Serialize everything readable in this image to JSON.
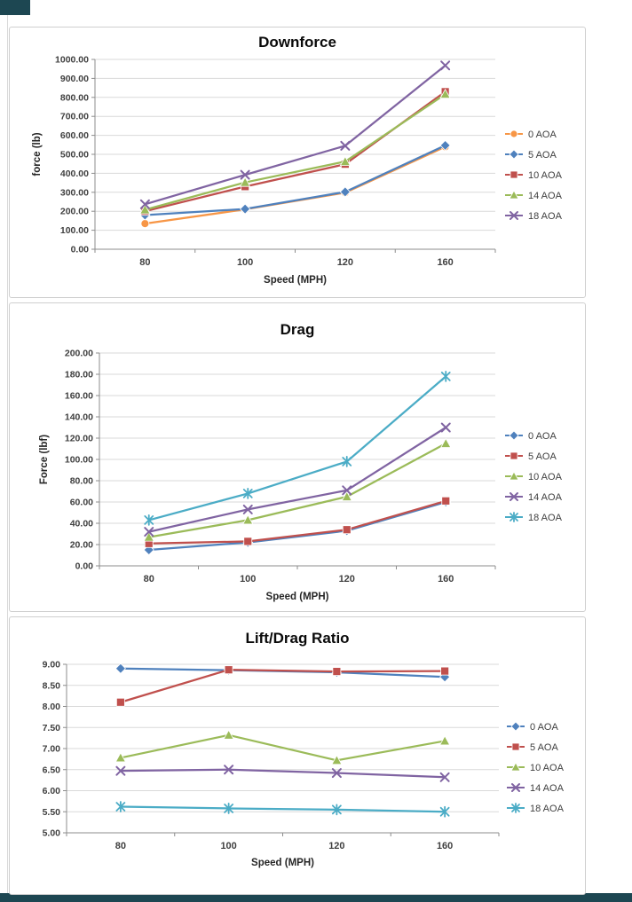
{
  "page": {
    "background": "#ffffff"
  },
  "decor": {
    "dark_cell_color": "#1d4752",
    "dark_row_color": "#1d4752",
    "chart_border_color": "#cfcfcf",
    "gridline_color": "#d9d9d9",
    "axis_color": "#8c8c8c"
  },
  "chart_data": [
    {
      "type": "line",
      "title": "Downforce",
      "xlabel": "Speed (MPH)",
      "ylabel": "force (lb)",
      "categories": [
        80,
        100,
        120,
        160
      ],
      "ylim": [
        0,
        1000
      ],
      "ystep": 100,
      "ydecimals": 2,
      "grid": true,
      "legend_position": "right",
      "series": [
        {
          "name": "0 AOA",
          "color": "#F79646",
          "marker": "circle",
          "values": [
            135,
            210,
            298,
            540
          ]
        },
        {
          "name": "5 AOA",
          "color": "#4F81BD",
          "marker": "diamond",
          "values": [
            180,
            212,
            302,
            547
          ]
        },
        {
          "name": "10 AOA",
          "color": "#C0504D",
          "marker": "square",
          "values": [
            200,
            330,
            448,
            830
          ]
        },
        {
          "name": "14 AOA",
          "color": "#9BBB59",
          "marker": "triangle",
          "values": [
            208,
            352,
            462,
            817
          ]
        },
        {
          "name": "18 AOA",
          "color": "#8064A2",
          "marker": "x",
          "values": [
            237,
            392,
            545,
            968
          ]
        }
      ]
    },
    {
      "type": "line",
      "title": "Drag",
      "xlabel": "Speed (MPH)",
      "ylabel": "Force (lbf)",
      "categories": [
        80,
        100,
        120,
        160
      ],
      "ylim": [
        0,
        200
      ],
      "ystep": 20,
      "ydecimals": 2,
      "grid": true,
      "legend_position": "right",
      "series": [
        {
          "name": "0 AOA",
          "color": "#4F81BD",
          "marker": "diamond",
          "values": [
            15,
            22,
            33,
            60
          ]
        },
        {
          "name": "5 AOA",
          "color": "#C0504D",
          "marker": "square",
          "values": [
            21,
            23,
            34,
            61
          ]
        },
        {
          "name": "10 AOA",
          "color": "#9BBB59",
          "marker": "triangle",
          "values": [
            27,
            43,
            65,
            115
          ]
        },
        {
          "name": "14 AOA",
          "color": "#8064A2",
          "marker": "x",
          "values": [
            32,
            53,
            71,
            130
          ]
        },
        {
          "name": "18 AOA",
          "color": "#4BACC6",
          "marker": "asterisk",
          "values": [
            43,
            68,
            98,
            178
          ]
        }
      ]
    },
    {
      "type": "line",
      "title": "Lift/Drag Ratio",
      "xlabel": "Speed (MPH)",
      "ylabel": "",
      "categories": [
        80,
        100,
        120,
        160
      ],
      "ylim": [
        5,
        9
      ],
      "ystep": 0.5,
      "ydecimals": 2,
      "grid": true,
      "legend_position": "right",
      "series": [
        {
          "name": "0 AOA",
          "color": "#4F81BD",
          "marker": "diamond",
          "values": [
            8.9,
            8.86,
            8.81,
            8.7
          ]
        },
        {
          "name": "5 AOA",
          "color": "#C0504D",
          "marker": "square",
          "values": [
            8.1,
            8.87,
            8.83,
            8.84
          ]
        },
        {
          "name": "10 AOA",
          "color": "#9BBB59",
          "marker": "triangle",
          "values": [
            6.78,
            7.32,
            6.72,
            7.18
          ]
        },
        {
          "name": "14 AOA",
          "color": "#8064A2",
          "marker": "x",
          "values": [
            6.47,
            6.5,
            6.42,
            6.32
          ]
        },
        {
          "name": "18 AOA",
          "color": "#4BACC6",
          "marker": "asterisk",
          "values": [
            5.62,
            5.58,
            5.55,
            5.5
          ]
        }
      ]
    }
  ]
}
